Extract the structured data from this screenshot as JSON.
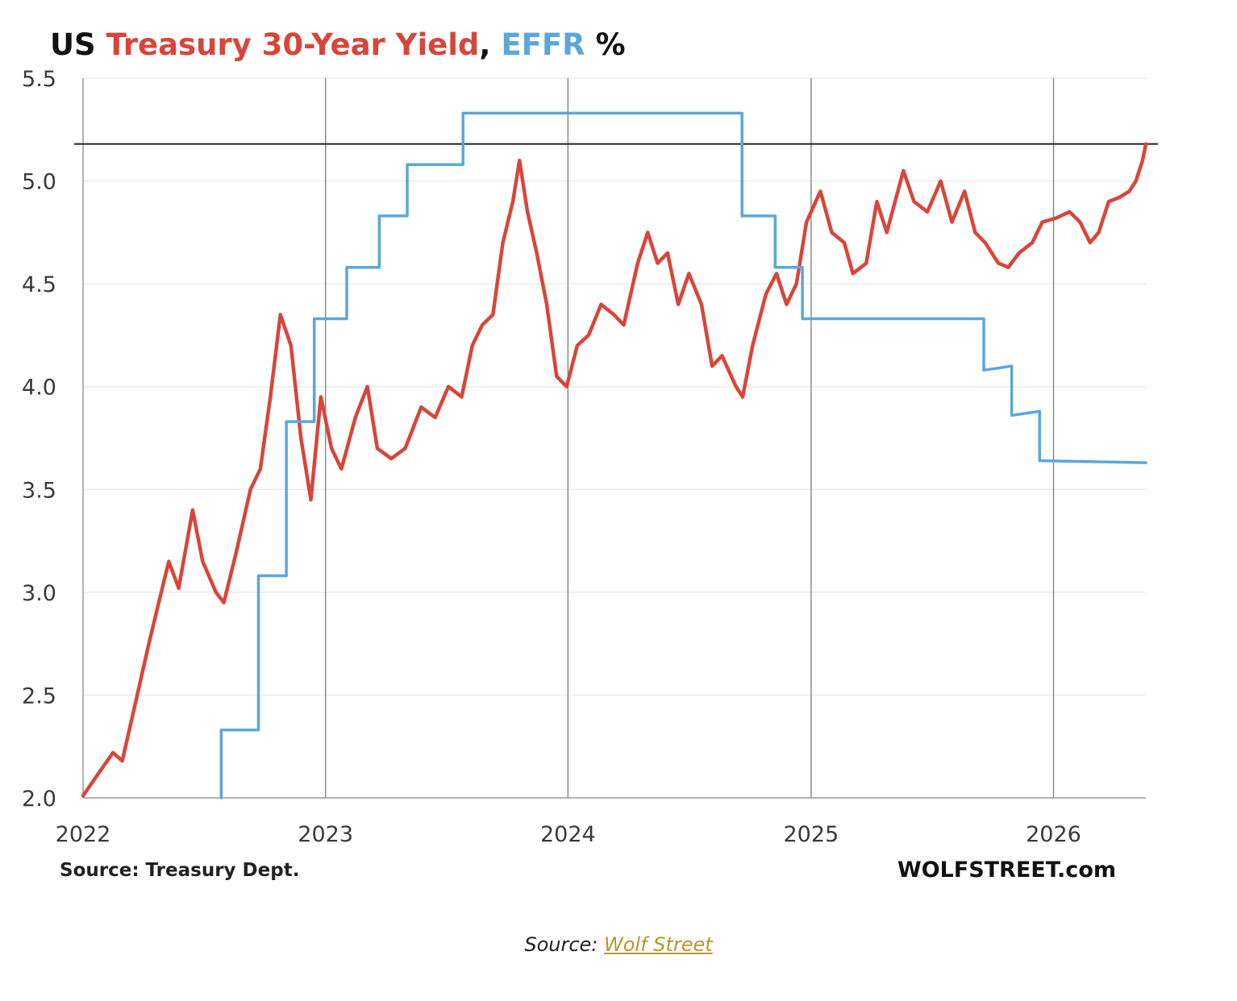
{
  "chart_data": {
    "type": "line",
    "title_parts": [
      {
        "text": "US ",
        "color": "#111111"
      },
      {
        "text": "Treasury 30-Year Yield",
        "color": "#d9453a"
      },
      {
        "text": ", ",
        "color": "#111111"
      },
      {
        "text": "EFFR",
        "color": "#5aa7dc"
      },
      {
        "text": " %",
        "color": "#111111"
      }
    ],
    "xlabel": "",
    "ylabel": "",
    "x_range": [
      "2022-01-01",
      "2026-05-20"
    ],
    "ylim": [
      2.0,
      5.5
    ],
    "x_ticks": [
      "2022",
      "2023",
      "2024",
      "2025",
      "2026"
    ],
    "y_ticks": [
      "5.5",
      "5.0",
      "4.5",
      "4.0",
      "3.5",
      "3.0",
      "2.5",
      "2.0"
    ],
    "reference_line": 5.18,
    "grid": "vertical at years, horizontal faint",
    "series": [
      {
        "name": "Treasury 30-Year Yield",
        "color": "#d9453a",
        "points": [
          [
            "2022-01-01",
            2.01
          ],
          [
            "2022-01-20",
            2.1
          ],
          [
            "2022-02-15",
            2.22
          ],
          [
            "2022-03-01",
            2.18
          ],
          [
            "2022-03-20",
            2.45
          ],
          [
            "2022-04-10",
            2.75
          ],
          [
            "2022-04-25",
            2.95
          ],
          [
            "2022-05-10",
            3.15
          ],
          [
            "2022-05-25",
            3.02
          ],
          [
            "2022-06-15",
            3.4
          ],
          [
            "2022-06-30",
            3.15
          ],
          [
            "2022-07-20",
            3.0
          ],
          [
            "2022-08-01",
            2.95
          ],
          [
            "2022-08-20",
            3.2
          ],
          [
            "2022-09-10",
            3.5
          ],
          [
            "2022-09-25",
            3.6
          ],
          [
            "2022-10-10",
            3.95
          ],
          [
            "2022-10-25",
            4.35
          ],
          [
            "2022-11-10",
            4.2
          ],
          [
            "2022-11-25",
            3.75
          ],
          [
            "2022-12-10",
            3.45
          ],
          [
            "2022-12-25",
            3.95
          ],
          [
            "2023-01-10",
            3.7
          ],
          [
            "2023-01-25",
            3.6
          ],
          [
            "2023-02-15",
            3.85
          ],
          [
            "2023-03-05",
            4.0
          ],
          [
            "2023-03-20",
            3.7
          ],
          [
            "2023-04-10",
            3.65
          ],
          [
            "2023-05-01",
            3.7
          ],
          [
            "2023-05-25",
            3.9
          ],
          [
            "2023-06-15",
            3.85
          ],
          [
            "2023-07-05",
            4.0
          ],
          [
            "2023-07-25",
            3.95
          ],
          [
            "2023-08-10",
            4.2
          ],
          [
            "2023-08-25",
            4.3
          ],
          [
            "2023-09-10",
            4.35
          ],
          [
            "2023-09-25",
            4.7
          ],
          [
            "2023-10-10",
            4.9
          ],
          [
            "2023-10-20",
            5.1
          ],
          [
            "2023-11-01",
            4.85
          ],
          [
            "2023-11-15",
            4.65
          ],
          [
            "2023-11-30",
            4.4
          ],
          [
            "2023-12-15",
            4.05
          ],
          [
            "2023-12-30",
            4.0
          ],
          [
            "2024-01-15",
            4.2
          ],
          [
            "2024-02-01",
            4.25
          ],
          [
            "2024-02-20",
            4.4
          ],
          [
            "2024-03-10",
            4.35
          ],
          [
            "2024-03-25",
            4.3
          ],
          [
            "2024-04-15",
            4.6
          ],
          [
            "2024-04-30",
            4.75
          ],
          [
            "2024-05-15",
            4.6
          ],
          [
            "2024-05-30",
            4.65
          ],
          [
            "2024-06-15",
            4.4
          ],
          [
            "2024-07-01",
            4.55
          ],
          [
            "2024-07-20",
            4.4
          ],
          [
            "2024-08-05",
            4.1
          ],
          [
            "2024-08-20",
            4.15
          ],
          [
            "2024-09-10",
            4.0
          ],
          [
            "2024-09-20",
            3.95
          ],
          [
            "2024-10-05",
            4.2
          ],
          [
            "2024-10-25",
            4.45
          ],
          [
            "2024-11-10",
            4.55
          ],
          [
            "2024-11-25",
            4.4
          ],
          [
            "2024-12-10",
            4.5
          ],
          [
            "2024-12-25",
            4.8
          ],
          [
            "2025-01-15",
            4.95
          ],
          [
            "2025-02-01",
            4.75
          ],
          [
            "2025-02-20",
            4.7
          ],
          [
            "2025-03-05",
            4.55
          ],
          [
            "2025-03-25",
            4.6
          ],
          [
            "2025-04-10",
            4.9
          ],
          [
            "2025-04-25",
            4.75
          ],
          [
            "2025-05-20",
            5.05
          ],
          [
            "2025-06-05",
            4.9
          ],
          [
            "2025-06-25",
            4.85
          ],
          [
            "2025-07-15",
            5.0
          ],
          [
            "2025-08-01",
            4.8
          ],
          [
            "2025-08-20",
            4.95
          ],
          [
            "2025-09-05",
            4.75
          ],
          [
            "2025-09-20",
            4.7
          ],
          [
            "2025-10-10",
            4.6
          ],
          [
            "2025-10-25",
            4.58
          ],
          [
            "2025-11-10",
            4.65
          ],
          [
            "2025-11-30",
            4.7
          ],
          [
            "2025-12-15",
            4.8
          ],
          [
            "2026-01-05",
            4.82
          ],
          [
            "2026-01-25",
            4.85
          ],
          [
            "2026-02-10",
            4.8
          ],
          [
            "2026-02-25",
            4.7
          ],
          [
            "2026-03-10",
            4.75
          ],
          [
            "2026-03-25",
            4.9
          ],
          [
            "2026-04-10",
            4.92
          ],
          [
            "2026-04-25",
            4.95
          ],
          [
            "2026-05-05",
            5.0
          ],
          [
            "2026-05-15",
            5.1
          ],
          [
            "2026-05-20",
            5.18
          ]
        ]
      },
      {
        "name": "EFFR",
        "color": "#5aa7dc",
        "points": [
          [
            "2022-07-28",
            2.0
          ],
          [
            "2022-07-28",
            2.33
          ],
          [
            "2022-09-22",
            2.33
          ],
          [
            "2022-09-22",
            3.08
          ],
          [
            "2022-11-03",
            3.08
          ],
          [
            "2022-11-03",
            3.83
          ],
          [
            "2022-12-15",
            3.83
          ],
          [
            "2022-12-15",
            4.33
          ],
          [
            "2023-02-02",
            4.33
          ],
          [
            "2023-02-02",
            4.58
          ],
          [
            "2023-03-23",
            4.58
          ],
          [
            "2023-03-23",
            4.83
          ],
          [
            "2023-05-04",
            4.83
          ],
          [
            "2023-05-04",
            5.08
          ],
          [
            "2023-07-27",
            5.08
          ],
          [
            "2023-07-27",
            5.33
          ],
          [
            "2024-09-19",
            5.33
          ],
          [
            "2024-09-19",
            4.83
          ],
          [
            "2024-11-08",
            4.83
          ],
          [
            "2024-11-08",
            4.58
          ],
          [
            "2024-12-19",
            4.58
          ],
          [
            "2024-12-19",
            4.33
          ],
          [
            "2025-09-18",
            4.33
          ],
          [
            "2025-09-18",
            4.08
          ],
          [
            "2025-10-30",
            4.1
          ],
          [
            "2025-10-30",
            3.86
          ],
          [
            "2025-12-11",
            3.88
          ],
          [
            "2025-12-11",
            3.64
          ],
          [
            "2026-05-20",
            3.63
          ]
        ]
      }
    ],
    "source_note": "Source: Treasury Dept.",
    "brand": "WOLFSTREET.com"
  },
  "caption": {
    "prefix": "Source: ",
    "link_text": "Wolf Street"
  }
}
